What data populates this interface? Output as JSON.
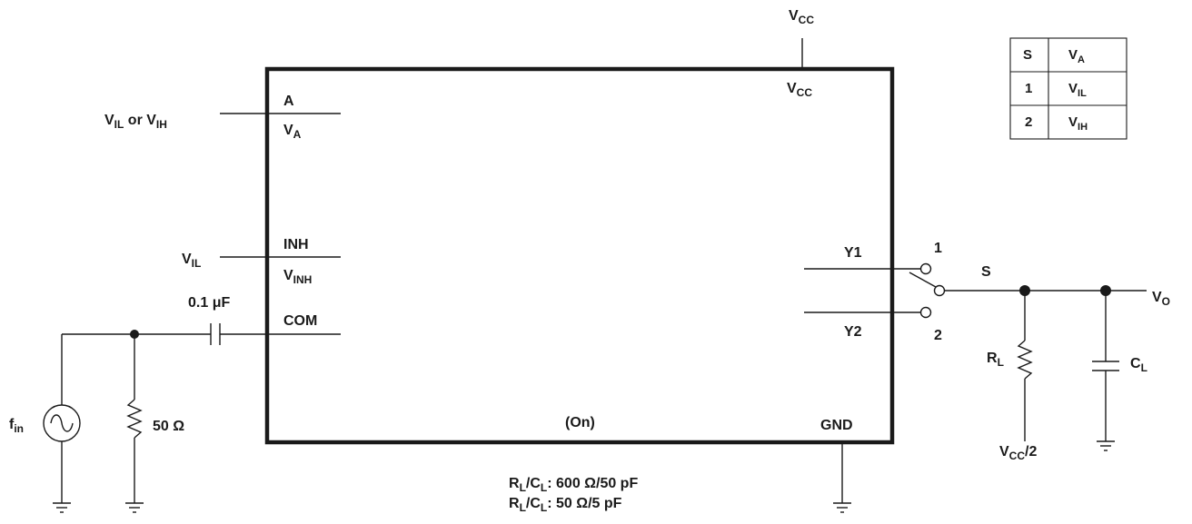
{
  "labels": {
    "vcc_top": {
      "main": "V",
      "sub": "CC"
    },
    "vcc_pin": {
      "main": "V",
      "sub": "CC"
    },
    "pin_a": "A",
    "pin_va": {
      "main": "V",
      "sub": "A"
    },
    "in_a_p1": {
      "main": "V",
      "sub": "IL"
    },
    "in_a_or": "or",
    "in_a_p2": {
      "main": "V",
      "sub": "IH"
    },
    "pin_inh": "INH",
    "pin_vinh": {
      "main": "V",
      "sub": "INH"
    },
    "in_inh": {
      "main": "V",
      "sub": "IL"
    },
    "cap_value": "0.1 μF",
    "pin_com": "COM",
    "fin": {
      "main": "f",
      "sub": "in"
    },
    "r50": "50 Ω",
    "on": "(On)",
    "gnd": "GND",
    "pin_y1": "Y1",
    "pin_y2": "Y2",
    "sw_1": "1",
    "sw_2": "2",
    "sw_s": "S",
    "vo": {
      "main": "V",
      "sub": "O"
    },
    "rl": {
      "main": "R",
      "sub": "L"
    },
    "cl": {
      "main": "C",
      "sub": "L"
    },
    "vcc_half": {
      "main": "V",
      "sub": "CC",
      "tail": "/2"
    },
    "note1": {
      "r": "R",
      "rsub": "L",
      "slash": "/C",
      "csub": "L",
      "value": ": 600 Ω/50 pF"
    },
    "note2": {
      "r": "R",
      "rsub": "L",
      "slash": "/C",
      "csub": "L",
      "value": ": 50 Ω/5 pF"
    }
  },
  "table": {
    "header": [
      {
        "main": "S",
        "sub": ""
      },
      {
        "main": "V",
        "sub": "A"
      }
    ],
    "rows": [
      [
        {
          "main": "1",
          "sub": ""
        },
        {
          "main": "V",
          "sub": "IL"
        }
      ],
      [
        {
          "main": "2",
          "sub": ""
        },
        {
          "main": "V",
          "sub": "IH"
        }
      ]
    ]
  }
}
